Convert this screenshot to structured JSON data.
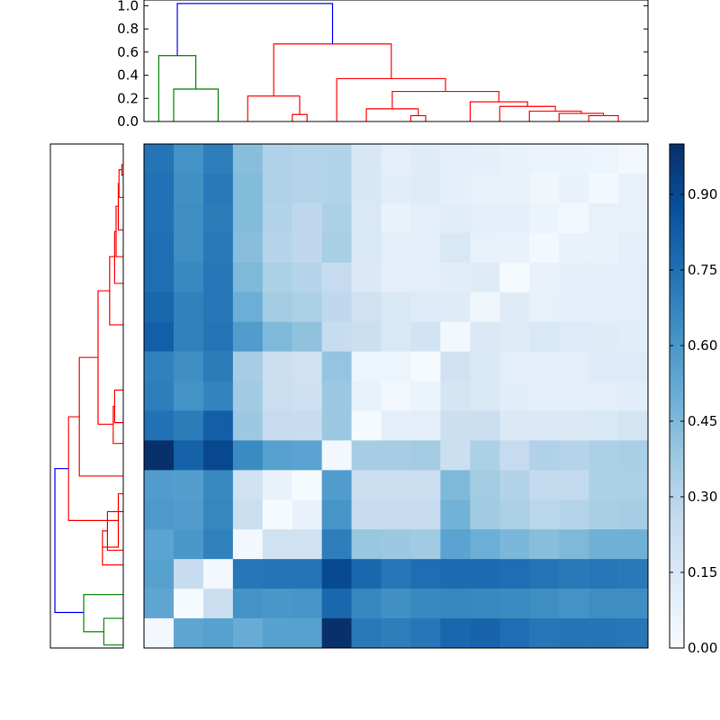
{
  "chart_data": [
    {
      "type": "dendrogram",
      "orientation": "top",
      "ylim": [
        0,
        1.05
      ],
      "yticks": [
        0.0,
        0.2,
        0.4,
        0.6,
        0.8,
        1.0
      ],
      "ytick_labels": [
        "0.0",
        "0.2",
        "0.4",
        "0.6",
        "0.8",
        "1.0"
      ],
      "n_leaves": 17,
      "colors": {
        "root": "#0000ff",
        "cluster_a": "#008000",
        "cluster_b": "#ff0000"
      },
      "links": [
        {
          "color": "cluster_a",
          "left": 0.5,
          "right": 2,
          "height": 0.28,
          "left_h": 0,
          "right_h": 0
        },
        {
          "color": "cluster_a",
          "left": 0,
          "right": 1.25,
          "height": 0.57,
          "left_h": 0,
          "right_h": 0.28
        },
        {
          "color": "cluster_b",
          "left": 4.5,
          "right": 5,
          "height": 0.06,
          "left_h": 0,
          "right_h": 0
        },
        {
          "color": "cluster_b",
          "left": 3,
          "right": 4.75,
          "height": 0.22,
          "left_h": 0,
          "right_h": 0.06
        },
        {
          "color": "cluster_b",
          "left": 8.5,
          "right": 9,
          "height": 0.05,
          "left_h": 0,
          "right_h": 0
        },
        {
          "color": "cluster_b",
          "left": 7,
          "right": 8.75,
          "height": 0.11,
          "left_h": 0,
          "right_h": 0.05
        },
        {
          "color": "cluster_b",
          "left": 14.5,
          "right": 15.5,
          "height": 0.05,
          "left_h": 0,
          "right_h": 0
        },
        {
          "color": "cluster_b",
          "left": 13.5,
          "right": 15,
          "height": 0.07,
          "left_h": 0,
          "right_h": 0.05
        },
        {
          "color": "cluster_b",
          "left": 12.5,
          "right": 14.25,
          "height": 0.09,
          "left_h": 0,
          "right_h": 0.07
        },
        {
          "color": "cluster_b",
          "left": 11.5,
          "right": 13.375,
          "height": 0.13,
          "left_h": 0,
          "right_h": 0.09
        },
        {
          "color": "cluster_b",
          "left": 10.5,
          "right": 12.44,
          "height": 0.17,
          "left_h": 0,
          "right_h": 0.13
        },
        {
          "color": "cluster_b",
          "left": 7.875,
          "right": 11.47,
          "height": 0.26,
          "left_h": 0.11,
          "right_h": 0.17
        },
        {
          "color": "cluster_b",
          "left": 6,
          "right": 9.67,
          "height": 0.37,
          "left_h": 0,
          "right_h": 0.26
        },
        {
          "color": "cluster_b",
          "left": 3.875,
          "right": 7.84,
          "height": 0.67,
          "left_h": 0.22,
          "right_h": 0.37
        },
        {
          "color": "root",
          "left": 0.625,
          "right": 5.86,
          "height": 1.02,
          "left_h": 0.57,
          "right_h": 0.67
        }
      ]
    },
    {
      "type": "dendrogram",
      "orientation": "left",
      "n_leaves": 17,
      "colors": {
        "root": "#0000ff",
        "cluster_a": "#008000",
        "cluster_b": "#ff0000"
      },
      "links": [
        {
          "color": "cluster_a",
          "left": 15.5,
          "right": 16.4,
          "height": 0.27,
          "left_h": 0,
          "right_h": 0
        },
        {
          "color": "cluster_a",
          "left": 15.95,
          "right": 14.7,
          "height": 0.55,
          "left_h": 0.27,
          "right_h": 0
        },
        {
          "color": "cluster_b",
          "left": 11.9,
          "right": 13.2,
          "height": 0.22,
          "left_h": 0,
          "right_h": 0
        },
        {
          "color": "cluster_b",
          "left": 12.55,
          "right": 13.7,
          "height": 0.29,
          "left_h": 0.22,
          "right_h": 0
        },
        {
          "color": "cluster_b",
          "left": 13.1,
          "right": 11.3,
          "height": 0.07,
          "left_h": 0.29,
          "right_h": 0
        },
        {
          "color": "cluster_b",
          "left": 0.2,
          "right": 0.55,
          "height": 0.02,
          "left_h": 0,
          "right_h": 0
        },
        {
          "color": "cluster_b",
          "left": 0.37,
          "right": 1.3,
          "height": 0.06,
          "left_h": 0.02,
          "right_h": 0
        },
        {
          "color": "cluster_b",
          "left": 0.83,
          "right": 2.4,
          "height": 0.07,
          "left_h": 0.06,
          "right_h": 0
        },
        {
          "color": "cluster_b",
          "left": 1.6,
          "right": 3.3,
          "height": 0.1,
          "left_h": 0.07,
          "right_h": 0
        },
        {
          "color": "cluster_b",
          "left": 2.45,
          "right": 4.2,
          "height": 0.12,
          "left_h": 0.1,
          "right_h": 0
        },
        {
          "color": "cluster_b",
          "left": 3.3,
          "right": 5.6,
          "height": 0.19,
          "left_h": 0.12,
          "right_h": 0
        },
        {
          "color": "cluster_b",
          "left": 7.8,
          "right": 8.9,
          "height": 0.12,
          "left_h": 0,
          "right_h": 0
        },
        {
          "color": "cluster_b",
          "left": 8.35,
          "right": 9.6,
          "height": 0.14,
          "left_h": 0.12,
          "right_h": 0
        },
        {
          "color": "cluster_b",
          "left": 4.45,
          "right": 8.95,
          "height": 0.35,
          "left_h": 0.19,
          "right_h": 0.14
        },
        {
          "color": "cluster_b",
          "left": 6.7,
          "right": 10.7,
          "height": 0.61,
          "left_h": 0.35,
          "right_h": 0
        },
        {
          "color": "cluster_b",
          "left": 8.7,
          "right": 12.2,
          "height": 0.76,
          "left_h": 0.61,
          "right_h": 0.07
        },
        {
          "color": "root",
          "left": 10.45,
          "right": 15.3,
          "height": 0.95,
          "left_h": 0.76,
          "right_h": 0.55
        }
      ]
    },
    {
      "type": "heatmap",
      "colormap": "Blues",
      "vmin": 0.0,
      "vmax": 1.0,
      "rows": 17,
      "cols": 17,
      "values": [
        [
          0.74,
          0.62,
          0.7,
          0.43,
          0.32,
          0.3,
          0.31,
          0.16,
          0.1,
          0.12,
          0.1,
          0.09,
          0.07,
          0.06,
          0.06,
          0.05,
          0.02
        ],
        [
          0.75,
          0.63,
          0.72,
          0.44,
          0.32,
          0.3,
          0.31,
          0.16,
          0.11,
          0.12,
          0.09,
          0.08,
          0.07,
          0.04,
          0.07,
          0.02,
          0.07
        ],
        [
          0.75,
          0.64,
          0.71,
          0.44,
          0.31,
          0.27,
          0.33,
          0.15,
          0.07,
          0.1,
          0.11,
          0.1,
          0.09,
          0.06,
          0.02,
          0.08,
          0.08
        ],
        [
          0.76,
          0.64,
          0.72,
          0.43,
          0.3,
          0.27,
          0.34,
          0.15,
          0.1,
          0.1,
          0.15,
          0.08,
          0.07,
          0.02,
          0.07,
          0.07,
          0.09
        ],
        [
          0.76,
          0.66,
          0.73,
          0.45,
          0.33,
          0.3,
          0.25,
          0.14,
          0.1,
          0.1,
          0.11,
          0.12,
          0.01,
          0.07,
          0.09,
          0.09,
          0.1
        ],
        [
          0.79,
          0.69,
          0.73,
          0.5,
          0.36,
          0.33,
          0.27,
          0.2,
          0.15,
          0.13,
          0.12,
          0.04,
          0.12,
          0.08,
          0.1,
          0.1,
          0.1
        ],
        [
          0.82,
          0.69,
          0.74,
          0.58,
          0.45,
          0.41,
          0.24,
          0.22,
          0.15,
          0.19,
          0.02,
          0.14,
          0.12,
          0.15,
          0.13,
          0.12,
          0.11
        ],
        [
          0.69,
          0.64,
          0.71,
          0.35,
          0.23,
          0.2,
          0.4,
          0.05,
          0.05,
          0.01,
          0.2,
          0.15,
          0.1,
          0.1,
          0.1,
          0.13,
          0.13
        ],
        [
          0.7,
          0.62,
          0.68,
          0.37,
          0.23,
          0.21,
          0.38,
          0.08,
          0.03,
          0.06,
          0.17,
          0.15,
          0.11,
          0.1,
          0.1,
          0.1,
          0.11
        ],
        [
          0.75,
          0.71,
          0.82,
          0.38,
          0.25,
          0.24,
          0.38,
          0.01,
          0.09,
          0.1,
          0.22,
          0.23,
          0.14,
          0.14,
          0.14,
          0.15,
          0.18
        ],
        [
          1.0,
          0.81,
          0.91,
          0.65,
          0.56,
          0.55,
          0.02,
          0.35,
          0.35,
          0.36,
          0.22,
          0.33,
          0.25,
          0.32,
          0.3,
          0.33,
          0.34
        ],
        [
          0.58,
          0.57,
          0.66,
          0.2,
          0.07,
          0.01,
          0.58,
          0.22,
          0.23,
          0.23,
          0.45,
          0.36,
          0.31,
          0.26,
          0.26,
          0.33,
          0.33
        ],
        [
          0.59,
          0.58,
          0.67,
          0.23,
          0.01,
          0.07,
          0.61,
          0.24,
          0.25,
          0.25,
          0.48,
          0.37,
          0.33,
          0.29,
          0.3,
          0.34,
          0.35
        ],
        [
          0.55,
          0.6,
          0.69,
          0.02,
          0.2,
          0.2,
          0.7,
          0.39,
          0.38,
          0.37,
          0.55,
          0.5,
          0.46,
          0.43,
          0.45,
          0.49,
          0.49
        ],
        [
          0.56,
          0.24,
          0.02,
          0.73,
          0.74,
          0.74,
          0.9,
          0.79,
          0.73,
          0.76,
          0.77,
          0.77,
          0.76,
          0.74,
          0.72,
          0.73,
          0.72
        ],
        [
          0.54,
          0.01,
          0.23,
          0.62,
          0.6,
          0.61,
          0.79,
          0.67,
          0.63,
          0.66,
          0.67,
          0.66,
          0.65,
          0.64,
          0.62,
          0.64,
          0.64
        ],
        [
          0.02,
          0.54,
          0.56,
          0.51,
          0.56,
          0.56,
          1.0,
          0.72,
          0.7,
          0.73,
          0.79,
          0.8,
          0.76,
          0.73,
          0.74,
          0.74,
          0.73
        ]
      ]
    },
    {
      "type": "colorbar",
      "colormap": "Blues",
      "range": [
        0.0,
        1.0
      ],
      "ticks": [
        0.0,
        0.15,
        0.3,
        0.45,
        0.6,
        0.75,
        0.9
      ],
      "tick_labels": [
        "0.00",
        "0.15",
        "0.30",
        "0.45",
        "0.60",
        "0.75",
        "0.90"
      ]
    }
  ]
}
